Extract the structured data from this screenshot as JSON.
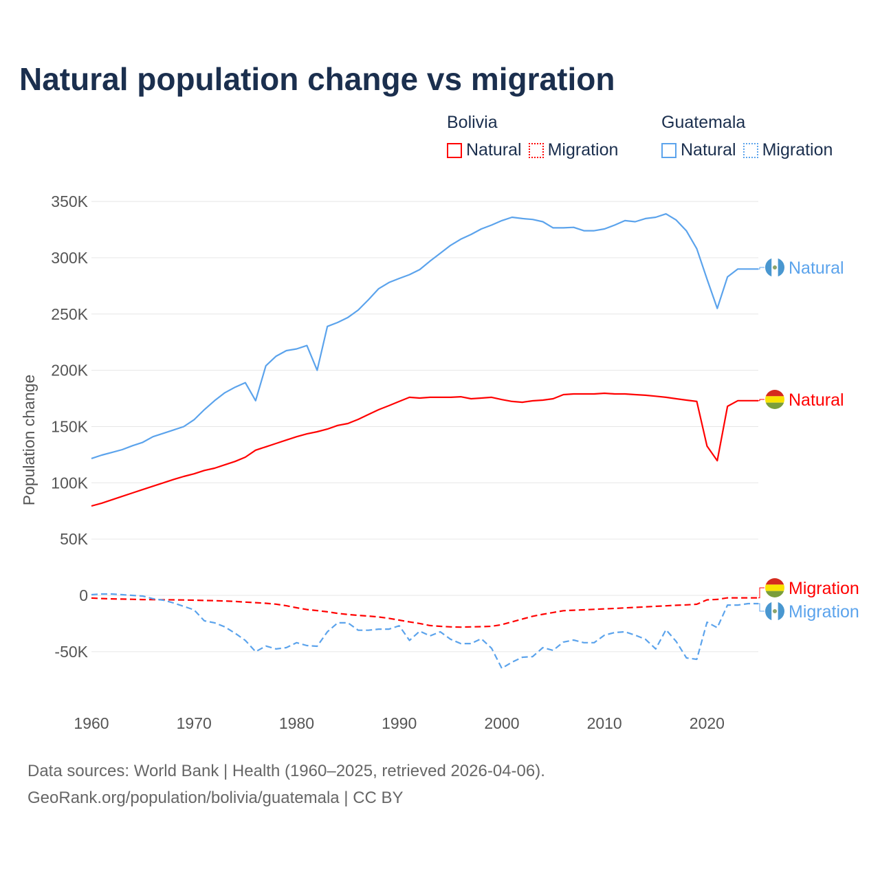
{
  "title": "Natural population change vs migration",
  "legend": {
    "groups": [
      {
        "name": "Bolivia",
        "color": "#ff0000",
        "items": [
          "Natural",
          "Migration"
        ]
      },
      {
        "name": "Guatemala",
        "color": "#5ba3ec",
        "items": [
          "Natural",
          "Migration"
        ]
      }
    ]
  },
  "footer": {
    "line1": "Data sources: World Bank | Health (1960–2025, retrieved 2026-04-06).",
    "line2": "GeoRank.org/population/bolivia/guatemala | CC BY"
  },
  "chart_data": {
    "type": "line",
    "title": "Natural population change vs migration",
    "xlabel": "",
    "ylabel": "Population change",
    "xlim": [
      1960,
      2025
    ],
    "ylim": [
      -88000,
      350000
    ],
    "xticks": [
      1960,
      1970,
      1980,
      1990,
      2000,
      2010,
      2020
    ],
    "yticks": [
      350000,
      300000,
      250000,
      200000,
      150000,
      100000,
      50000,
      0,
      -50000
    ],
    "ytick_labels": [
      "350K",
      "300K",
      "250K",
      "200K",
      "150K",
      "100K",
      "50K",
      "0",
      "-50K"
    ],
    "grid": true,
    "legend_position": "top-right",
    "x_start": 1960,
    "series": [
      {
        "name": "Guatemala Natural",
        "label": "Natural",
        "country": "Guatemala",
        "color": "#5ba3ec",
        "dash": false,
        "values": [
          121.6,
          124.6,
          127,
          129.5,
          133,
          136,
          141,
          144,
          147,
          150,
          156,
          165,
          173,
          180,
          185,
          189,
          173,
          204,
          212.5,
          217.5,
          219,
          222,
          200,
          239,
          242.5,
          247,
          253.5,
          262.7,
          272.5,
          278,
          281.6,
          285,
          289.5,
          297,
          304,
          311,
          316.5,
          320.7,
          325.6,
          329,
          333,
          336,
          334.8,
          334,
          332,
          326.6,
          326.6,
          327,
          324,
          324,
          325.6,
          329,
          333,
          332,
          334.8,
          336,
          339,
          333.5,
          323.8,
          308,
          281,
          255,
          283,
          290,
          290,
          290
        ]
      },
      {
        "name": "Bolivia Natural",
        "label": "Natural",
        "country": "Bolivia",
        "color": "#ff0000",
        "dash": false,
        "values": [
          79.4,
          81.9,
          85,
          88,
          91,
          94,
          97,
          100,
          103,
          105.7,
          108,
          111,
          113,
          116,
          119,
          122.8,
          129,
          132,
          135,
          138,
          141,
          143.5,
          145.4,
          147.8,
          151,
          152.7,
          156.4,
          160.7,
          165,
          168.6,
          172.3,
          176,
          175.3,
          176,
          176,
          176,
          176.5,
          174.7,
          175.3,
          176,
          174,
          172.3,
          171.6,
          172.9,
          173.5,
          174.7,
          178.4,
          179,
          179,
          179,
          179.6,
          179,
          179,
          178.4,
          177.8,
          177,
          176,
          174.7,
          173.5,
          172.3,
          132.6,
          119.7,
          168,
          173,
          173,
          173
        ]
      },
      {
        "name": "Bolivia Migration",
        "label": "Migration",
        "country": "Bolivia",
        "color": "#ff0000",
        "dash": true,
        "values": [
          -2.4,
          -2.8,
          -3.1,
          -3.3,
          -3.5,
          -3.7,
          -3.8,
          -3.9,
          -4,
          -4.1,
          -4.3,
          -4.5,
          -4.7,
          -5,
          -5.4,
          -6,
          -6.5,
          -7,
          -7.8,
          -9.2,
          -11,
          -12.6,
          -13.5,
          -14.6,
          -16,
          -17,
          -17.8,
          -18.4,
          -19.2,
          -20.4,
          -22,
          -23.6,
          -25,
          -26.8,
          -27.5,
          -28,
          -28.2,
          -28,
          -27.8,
          -27.5,
          -26,
          -23.5,
          -21,
          -18.6,
          -16.8,
          -15.2,
          -13.6,
          -13.2,
          -12.8,
          -12.4,
          -12,
          -11.6,
          -11.1,
          -10.7,
          -10.2,
          -9.7,
          -9.3,
          -8.8,
          -8.4,
          -7.9,
          -4,
          -3.6,
          -2.2,
          -2.2,
          -2.2,
          -2.2
        ]
      },
      {
        "name": "Guatemala Migration",
        "label": "Migration",
        "country": "Guatemala",
        "color": "#5ba3ec",
        "dash": true,
        "values": [
          0.6,
          1.2,
          1.2,
          0.6,
          0,
          -0.6,
          -3,
          -4.3,
          -6.7,
          -9.8,
          -12.8,
          -22.6,
          -24.4,
          -28,
          -33.6,
          -40,
          -50,
          -45,
          -47.6,
          -46.4,
          -42,
          -44.6,
          -45.2,
          -32.4,
          -24.4,
          -24.4,
          -31,
          -31,
          -30,
          -30,
          -27,
          -40,
          -31.8,
          -36,
          -32.4,
          -39,
          -42.8,
          -42.8,
          -38.5,
          -47,
          -64.8,
          -59.3,
          -55,
          -54.4,
          -46.4,
          -48.9,
          -41.5,
          -39.7,
          -42,
          -42,
          -35.4,
          -33,
          -32.4,
          -35.4,
          -39,
          -47.6,
          -30.5,
          -41,
          -55.6,
          -56.8,
          -23.8,
          -28.7,
          -8.6,
          -8.6,
          -7.3,
          -7.3
        ]
      }
    ],
    "value_unit": "thousands"
  }
}
